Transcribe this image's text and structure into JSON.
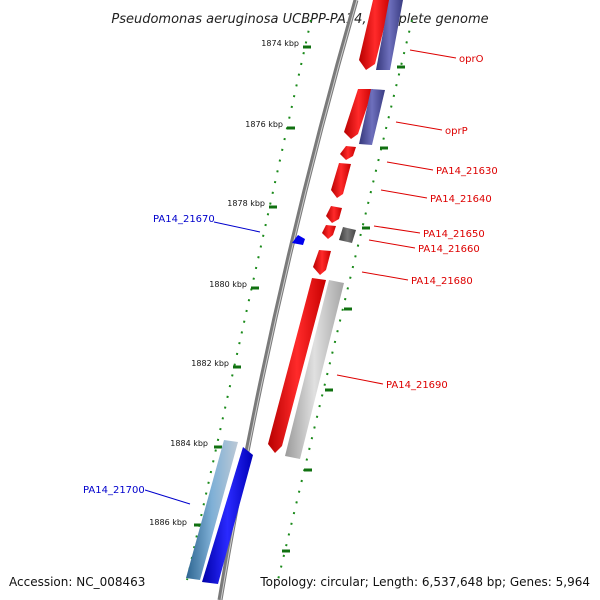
{
  "title": "Pseudomonas aeruginosa UCBPP-PA14, complete genome",
  "accession": "Accession: NC_008463",
  "topology": "Topology: circular; Length: 6,537,648 bp; Genes: 5,964",
  "colors": {
    "forward_gene": "#ff0000",
    "reverse_gene": "#0000ff",
    "blue_slate": "#4d4f9a",
    "gray_gene": "#b8b8b8",
    "dark_gray_gene": "#555555",
    "label_red": "#dd0000",
    "label_blue": "#0000cc",
    "backbone": "#888888",
    "tick": "#107010"
  },
  "kbp_ticks": [
    "1874 kbp",
    "1876 kbp",
    "1878 kbp",
    "1880 kbp",
    "1882 kbp",
    "1884 kbp",
    "1886 kbp"
  ],
  "gene_labels": [
    {
      "text": "oprO",
      "color": "red"
    },
    {
      "text": "oprP",
      "color": "red"
    },
    {
      "text": "PA14_21630",
      "color": "red"
    },
    {
      "text": "PA14_21640",
      "color": "red"
    },
    {
      "text": "PA14_21650",
      "color": "red"
    },
    {
      "text": "PA14_21660",
      "color": "red"
    },
    {
      "text": "PA14_21670",
      "color": "blue"
    },
    {
      "text": "PA14_21680",
      "color": "red"
    },
    {
      "text": "PA14_21690",
      "color": "red"
    },
    {
      "text": "PA14_21700",
      "color": "blue"
    }
  ]
}
